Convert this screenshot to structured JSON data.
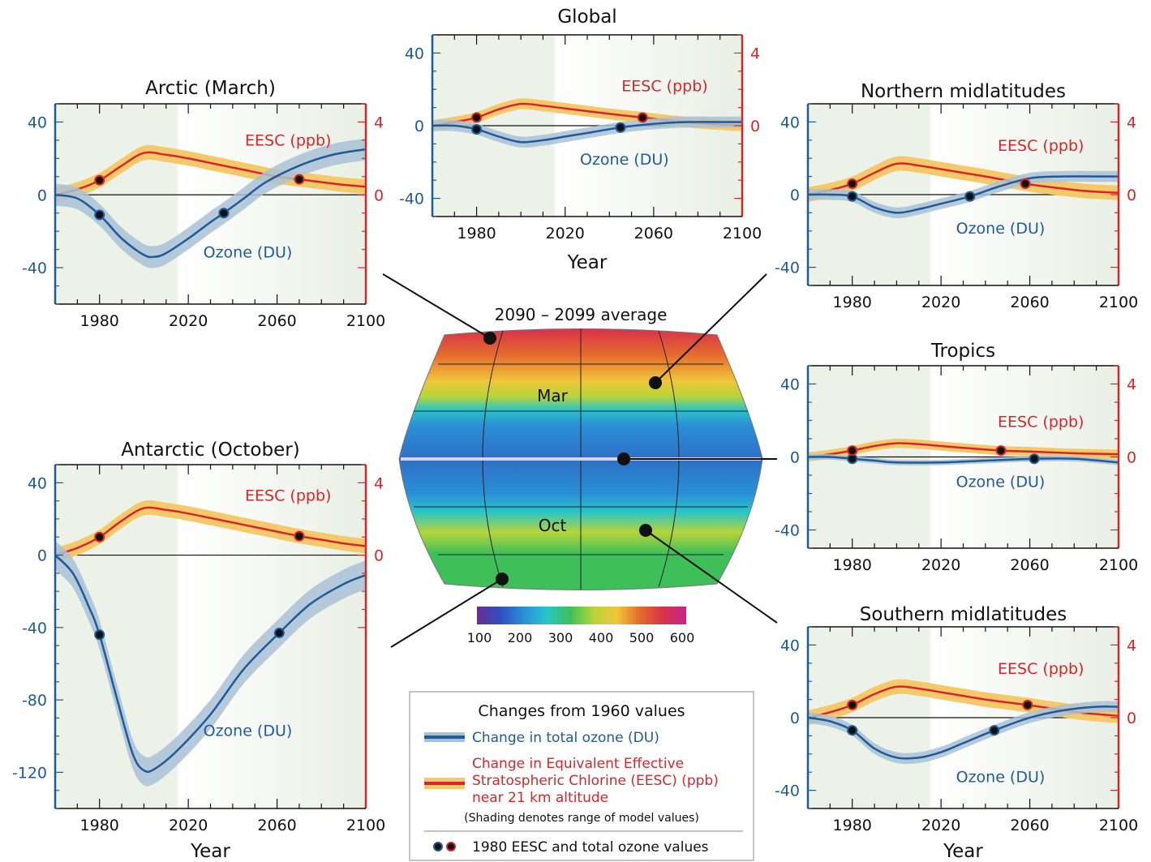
{
  "legend": {
    "title": "Changes from 1960 values",
    "ozone_label": "Change in total ozone (DU)",
    "eesc_label_lines": [
      "Change in Equivalent Effective",
      "Stratospheric Chlorine (EESC) (ppb)",
      "near 21 km altitude"
    ],
    "shading_note": "(Shading denotes range of model values)",
    "marker_label": "1980 EESC and total ozone values",
    "ozone_color": "#1f5a99",
    "ozone_band_color": "#a9c1d6",
    "eesc_color": "#d7262b",
    "eesc_band_color": "#f5c86a"
  },
  "map": {
    "title": "2090 – 2099 average",
    "label_mar": "Mar",
    "label_oct": "Oct",
    "colorbar_ticks": [
      "100",
      "200",
      "300",
      "400",
      "500",
      "600"
    ],
    "colorbar_colors": [
      "#6a2c91",
      "#2f4fbf",
      "#2a8fd6",
      "#29c4c9",
      "#3fbf5a",
      "#b6d43a",
      "#f0c63a",
      "#e56b2e",
      "#d8324b",
      "#c2268f"
    ]
  },
  "chart_data": [
    {
      "id": "arctic",
      "type": "line",
      "title": "Arctic (March)",
      "xlabel": "",
      "xlim": [
        1960,
        2100
      ],
      "xticks": [
        "1980",
        "2020",
        "2060",
        "2100"
      ],
      "ylim_left": [
        -60,
        50
      ],
      "yticks_left": [
        "40",
        "0",
        "-40"
      ],
      "yticks_right": [
        "4",
        "0"
      ],
      "series": [
        {
          "name": "Ozone (DU)",
          "x": [
            1960,
            1970,
            1980,
            1990,
            2000,
            2005,
            2010,
            2020,
            2030,
            2036,
            2045,
            2055,
            2070,
            2085,
            2100
          ],
          "y": [
            0,
            -2,
            -11,
            -24,
            -33,
            -34,
            -32,
            -24,
            -15,
            -10,
            -2,
            7,
            16,
            22,
            25
          ],
          "band": 6
        },
        {
          "name": "EESC (ppb)",
          "x": [
            1960,
            1970,
            1980,
            1990,
            2000,
            2010,
            2020,
            2030,
            2040,
            2050,
            2060,
            2070,
            2080,
            2090,
            2100
          ],
          "y": [
            0,
            0.3,
            0.8,
            1.6,
            2.3,
            2.2,
            2.0,
            1.75,
            1.5,
            1.25,
            1.0,
            0.85,
            0.7,
            0.55,
            0.45
          ],
          "band": 0.4
        }
      ],
      "markers": {
        "ozone": [
          1980,
          -11
        ],
        "ozone2": [
          2036,
          -10
        ],
        "eesc": [
          1980,
          0.8
        ],
        "eesc2": [
          2070,
          0.85
        ]
      }
    },
    {
      "id": "global",
      "type": "line",
      "title": "Global",
      "xlabel": "Year",
      "xlim": [
        1960,
        2100
      ],
      "xticks": [
        "1980",
        "2020",
        "2060",
        "2100"
      ],
      "ylim_left": [
        -50,
        50
      ],
      "yticks_left": [
        "40",
        "0",
        "-40"
      ],
      "yticks_right": [
        "4",
        "0"
      ],
      "series": [
        {
          "name": "Ozone (DU)",
          "x": [
            1960,
            1970,
            1980,
            1990,
            2000,
            2010,
            2020,
            2030,
            2045,
            2060,
            2075,
            2090,
            2100
          ],
          "y": [
            0,
            0,
            -2,
            -6,
            -9,
            -8,
            -6,
            -4,
            -1,
            1,
            2,
            2,
            2
          ],
          "band": 3
        },
        {
          "name": "EESC (ppb)",
          "x": [
            1960,
            1970,
            1980,
            1990,
            2000,
            2010,
            2020,
            2030,
            2040,
            2055,
            2070,
            2085,
            2100
          ],
          "y": [
            0,
            0.2,
            0.45,
            0.9,
            1.2,
            1.1,
            0.95,
            0.8,
            0.65,
            0.45,
            0.25,
            0.1,
            0.0
          ],
          "band": 0.3
        }
      ],
      "markers": {
        "ozone": [
          1980,
          -2
        ],
        "ozone2": [
          2045,
          -1
        ],
        "eesc": [
          1980,
          0.45
        ],
        "eesc2": [
          2055,
          0.45
        ]
      }
    },
    {
      "id": "nmid",
      "type": "line",
      "title": "Northern midlatitudes",
      "xlabel": "",
      "xlim": [
        1960,
        2100
      ],
      "xticks": [
        "1980",
        "2020",
        "2060",
        "2100"
      ],
      "ylim_left": [
        -50,
        50
      ],
      "yticks_left": [
        "40",
        "0",
        "-40"
      ],
      "yticks_right": [
        "4",
        "0"
      ],
      "series": [
        {
          "name": "Ozone (DU)",
          "x": [
            1960,
            1970,
            1980,
            1990,
            2000,
            2010,
            2020,
            2033,
            2045,
            2060,
            2075,
            2090,
            2100
          ],
          "y": [
            0,
            0,
            -1,
            -7,
            -10,
            -8,
            -5,
            -1,
            4,
            9,
            10,
            10,
            10
          ],
          "band": 3
        },
        {
          "name": "EESC (ppb)",
          "x": [
            1960,
            1970,
            1980,
            1990,
            2000,
            2010,
            2020,
            2030,
            2040,
            2058,
            2070,
            2085,
            2100
          ],
          "y": [
            0,
            0.25,
            0.6,
            1.2,
            1.7,
            1.6,
            1.4,
            1.2,
            1.0,
            0.6,
            0.4,
            0.2,
            0.1
          ],
          "band": 0.4
        }
      ],
      "markers": {
        "ozone": [
          1980,
          -1
        ],
        "ozone2": [
          2033,
          -1
        ],
        "eesc": [
          1980,
          0.6
        ],
        "eesc2": [
          2058,
          0.6
        ]
      }
    },
    {
      "id": "tropics",
      "type": "line",
      "title": "Tropics",
      "xlabel": "",
      "xlim": [
        1960,
        2100
      ],
      "xticks": [
        "1980",
        "2020",
        "2060",
        "2100"
      ],
      "ylim_left": [
        -50,
        50
      ],
      "yticks_left": [
        "40",
        "0",
        "-40"
      ],
      "yticks_right": [
        "4",
        "0"
      ],
      "series": [
        {
          "name": "Ozone (DU)",
          "x": [
            1960,
            1970,
            1980,
            1990,
            2000,
            2020,
            2040,
            2062,
            2080,
            2100
          ],
          "y": [
            0,
            0,
            -1,
            -2,
            -3,
            -3,
            -2,
            -1,
            -1,
            -3
          ],
          "band": 1.5
        },
        {
          "name": "EESC (ppb)",
          "x": [
            1960,
            1970,
            1980,
            1990,
            2000,
            2010,
            2020,
            2030,
            2047,
            2060,
            2080,
            2100
          ],
          "y": [
            0,
            0.15,
            0.35,
            0.6,
            0.75,
            0.7,
            0.6,
            0.5,
            0.35,
            0.3,
            0.2,
            0.15
          ],
          "band": 0.25
        }
      ],
      "markers": {
        "ozone": [
          1980,
          -1
        ],
        "ozone2": [
          2062,
          -1
        ],
        "eesc": [
          1980,
          0.35
        ],
        "eesc2": [
          2047,
          0.35
        ]
      }
    },
    {
      "id": "antarctic",
      "type": "line",
      "title": "Antarctic (October)",
      "xlabel": "Year",
      "xlim": [
        1960,
        2100
      ],
      "xticks": [
        "1980",
        "2020",
        "2060",
        "2100"
      ],
      "ylim_left": [
        -140,
        50
      ],
      "yticks_left": [
        "40",
        "0",
        "-40",
        "-80",
        "-120"
      ],
      "yticks_right": [
        "4",
        "0"
      ],
      "series": [
        {
          "name": "Ozone (DU)",
          "x": [
            1960,
            1968,
            1975,
            1980,
            1988,
            1995,
            2000,
            2005,
            2015,
            2030,
            2045,
            2061,
            2075,
            2090,
            2100
          ],
          "y": [
            0,
            -10,
            -28,
            -44,
            -80,
            -110,
            -119,
            -118,
            -108,
            -88,
            -63,
            -43,
            -27,
            -16,
            -11
          ],
          "band": 8
        },
        {
          "name": "EESC (ppb)",
          "x": [
            1960,
            1970,
            1980,
            1990,
            2000,
            2010,
            2020,
            2030,
            2040,
            2050,
            2060,
            2070,
            2080,
            2090,
            2100
          ],
          "y": [
            0,
            0.4,
            1.0,
            1.9,
            2.6,
            2.5,
            2.3,
            2.05,
            1.8,
            1.55,
            1.3,
            1.05,
            0.85,
            0.65,
            0.5
          ],
          "band": 0.4
        }
      ],
      "markers": {
        "ozone": [
          1980,
          -44
        ],
        "ozone2": [
          2061,
          -43
        ],
        "eesc": [
          1980,
          1.0
        ],
        "eesc2": [
          2070,
          1.05
        ]
      }
    },
    {
      "id": "smid",
      "type": "line",
      "title": "Southern midlatitudes",
      "xlabel": "Year",
      "xlim": [
        1960,
        2100
      ],
      "xticks": [
        "1980",
        "2020",
        "2060",
        "2100"
      ],
      "ylim_left": [
        -50,
        50
      ],
      "yticks_left": [
        "40",
        "0",
        "-40"
      ],
      "yticks_right": [
        "4",
        "0"
      ],
      "series": [
        {
          "name": "Ozone (DU)",
          "x": [
            1960,
            1970,
            1980,
            1990,
            2000,
            2010,
            2020,
            2030,
            2044,
            2060,
            2075,
            2090,
            2100
          ],
          "y": [
            0,
            -2,
            -7,
            -17,
            -22,
            -22,
            -19,
            -14,
            -7,
            0,
            4,
            6,
            6
          ],
          "band": 3
        },
        {
          "name": "EESC (ppb)",
          "x": [
            1960,
            1970,
            1980,
            1990,
            2000,
            2010,
            2020,
            2030,
            2040,
            2059,
            2070,
            2085,
            2100
          ],
          "y": [
            0,
            0.3,
            0.7,
            1.3,
            1.7,
            1.6,
            1.4,
            1.2,
            1.0,
            0.7,
            0.5,
            0.25,
            0.1
          ],
          "band": 0.4
        }
      ],
      "markers": {
        "ozone": [
          1980,
          -7
        ],
        "ozone2": [
          2044,
          -7
        ],
        "eesc": [
          1980,
          0.7
        ],
        "eesc2": [
          2059,
          0.7
        ]
      }
    }
  ]
}
